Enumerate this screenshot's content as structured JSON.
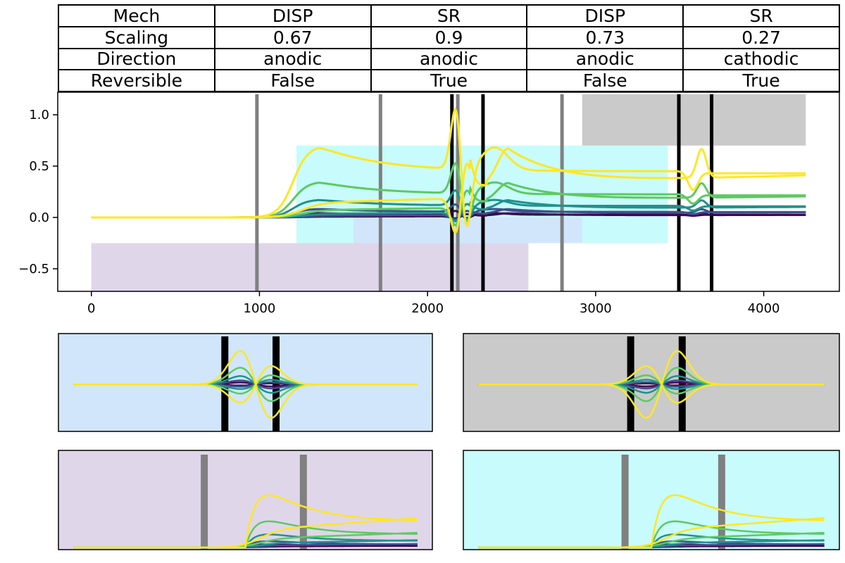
{
  "table": {
    "rows": [
      [
        "Mech",
        "DISP",
        "SR",
        "DISP",
        "SR"
      ],
      [
        "Scaling",
        "0.67",
        "0.9",
        "0.73",
        "0.27"
      ],
      [
        "Direction",
        "anodic",
        "anodic",
        "anodic",
        "cathodic"
      ],
      [
        "Reversible",
        "False",
        "True",
        "False",
        "True"
      ]
    ]
  },
  "colors": {
    "viridis": [
      "#440154",
      "#3b528b",
      "#21918c",
      "#5ec962",
      "#fde725"
    ],
    "regions": {
      "purple": "#e0d6ea",
      "cyan": "#c8fbfb",
      "blue": "#d1e6fb",
      "gray": "#cacaca"
    },
    "marker_gray": "#808080",
    "marker_black": "#000000"
  },
  "chart_data": [
    {
      "name": "main",
      "type": "line",
      "xlim": [
        -200,
        4450
      ],
      "ylim": [
        -0.72,
        1.22
      ],
      "x_ticks": [
        0,
        1000,
        2000,
        3000,
        4000
      ],
      "y_ticks": [
        -0.5,
        0.0,
        0.5,
        1.0
      ],
      "x_tick_labels": [
        "0",
        "1000",
        "2000",
        "3000",
        "4000"
      ],
      "y_tick_labels": [
        "−0.5",
        "0.0",
        "0.5",
        "1.0"
      ],
      "series_scales": [
        0.06,
        0.12,
        0.25,
        0.5,
        1.0
      ],
      "regions": [
        {
          "color": "purple",
          "x": [
            0,
            2600
          ],
          "y": [
            -0.72,
            -0.25
          ]
        },
        {
          "color": "cyan",
          "x": [
            1220,
            3430
          ],
          "y": [
            -0.25,
            0.7
          ]
        },
        {
          "color": "blue",
          "x": [
            1560,
            2920
          ],
          "y": [
            -0.25,
            0.0
          ]
        },
        {
          "color": "gray",
          "x": [
            2920,
            4250
          ],
          "y": [
            0.7,
            1.2
          ]
        }
      ],
      "gray_lines": [
        985,
        1720,
        2180,
        2800
      ],
      "black_lines": [
        2145,
        2330,
        3495,
        3690
      ]
    },
    {
      "name": "inset-blue",
      "type": "line",
      "background": "blue",
      "black_lines": [
        0.445,
        0.582
      ],
      "shape": "wave"
    },
    {
      "name": "inset-gray",
      "type": "line",
      "background": "gray",
      "black_lines": [
        0.445,
        0.582
      ],
      "shape": "dip-peak"
    },
    {
      "name": "inset-purple",
      "type": "line",
      "background": "purple",
      "gray_lines": [
        0.39,
        0.655
      ],
      "shape": "peak"
    },
    {
      "name": "inset-cyan",
      "type": "line",
      "background": "cyan",
      "gray_lines": [
        0.43,
        0.687
      ],
      "shape": "peak"
    }
  ]
}
